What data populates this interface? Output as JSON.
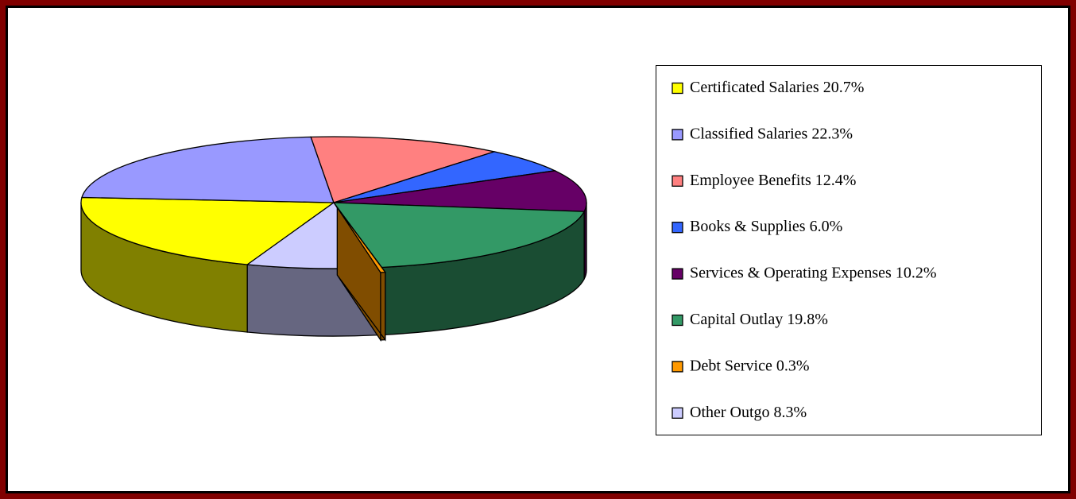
{
  "chart_data": {
    "type": "pie",
    "categories": [
      "Certificated Salaries",
      "Classified Salaries",
      "Employee Benefits",
      "Books & Supplies",
      "Services & Operating Expenses",
      "Capital Outlay",
      "Debt Service",
      "Other Outgo"
    ],
    "values": [
      20.7,
      22.3,
      12.4,
      6.0,
      10.2,
      19.8,
      0.3,
      8.3
    ],
    "value_labels": [
      "20.7%",
      "22.3%",
      "12.4%",
      "6.0%",
      "10.2%",
      "19.8%",
      "0.3%",
      "8.3%"
    ],
    "colors": [
      "#ffff00",
      "#9999ff",
      "#ff8080",
      "#3366ff",
      "#660066",
      "#339966",
      "#ff9900",
      "#ccccff"
    ],
    "exploded": [
      6
    ],
    "legend": "right"
  }
}
